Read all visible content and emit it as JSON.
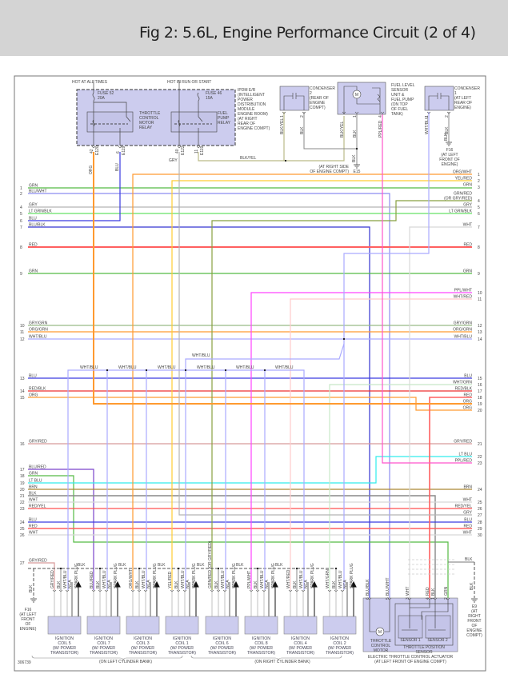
{
  "title": "Fig 2: 5.6L, Engine Performance Circuit (2 of 4)",
  "figure_id": "306739",
  "colors": {
    "GRN": "#55bb44",
    "BLU": "#3a3ae0",
    "BLU/WHT": "#8c8cf0",
    "BLU/BLK": "#3434d0",
    "GRY": "#b4b4b4",
    "LT GRN/BLK": "#66e066",
    "RED": "#ff6060",
    "ORG": "#ff9a30",
    "ORG/WHT": "#ff9a30",
    "YEL/RED": "#ffcc33",
    "GRN/RED": "#88a040",
    "WHT": "#d8d8d8",
    "PPL/WHT": "#ff44ff",
    "WHT/RED": "#ffcaca",
    "GRY/GRN": "#99bb88",
    "ORG/GRN": "#ff9a30",
    "WHT/BLU": "#aaaaff",
    "RED/BLK": "#ee3030",
    "WHT/GRN": "#c8e8c8",
    "GRY/RED": "#d89a9a",
    "LT BLU": "#30ecec",
    "PPL/RED": "#ff55cc",
    "BRN": "#aa8833",
    "BLK": "#888888",
    "RED/YEL": "#ff5050",
    "BLU/RED": "#7a44cc",
    "BLK/YEL": "#bbbb88",
    "module_fill": "#ccccee",
    "frame": "#666666"
  },
  "top": {
    "hot_all_times": "HOT AT ALL TIMES",
    "hot_run_start": "HOT IN RUN OR START",
    "fuse52": [
      "FUSE 52",
      "20A"
    ],
    "fuse46": [
      "FUSE 46",
      "15A"
    ],
    "tcm_relay": [
      "THROTTLE",
      "CONTROL",
      "MOTOR",
      "RELAY"
    ],
    "fp_relay": [
      "FUEL",
      "PUMP",
      "RELAY"
    ],
    "ipdm": [
      "IPDM E/R",
      "(INTELLIGENT",
      "POWER",
      "DISTRIBUTION",
      "MODULE",
      "ENGINE ROOM)",
      "(AT RIGHT",
      "REAR OF",
      "ENGINE COMPT)"
    ],
    "ipdm_pins": [
      {
        "pin": "42",
        "conn": "E120",
        "wire": "ORG"
      },
      {
        "pin": "6",
        "conn": "E119",
        "wire": "BLU"
      },
      {
        "pin": "40",
        "conn": "E122",
        "wire": "GRY"
      },
      {
        "pin": "11",
        "conn": "E119",
        "wire": "BLK/YEL"
      }
    ],
    "condenser2": [
      "CONDENSER",
      "2",
      "(REAR OF",
      "ENGINE",
      "COMPT)"
    ],
    "condenser2_pins": [
      {
        "pin": "1",
        "wire": "BLK/YEL"
      },
      {
        "pin": "2",
        "wire": "BLK"
      }
    ],
    "fuel_pump": [
      "FUEL LEVEL",
      "SENSOR",
      "UNIT &",
      "FUEL PUMP",
      "(ON TOP",
      "OF FUEL",
      "TANK)"
    ],
    "fuel_pump_pins": [
      {
        "pin": "",
        "wire": "BLK/YEL"
      },
      {
        "pin": "1",
        "wire": "BLK"
      },
      {
        "pin": "4",
        "wire": "PPL/RED"
      }
    ],
    "e15": {
      "wire": "BLK",
      "loc": [
        "(AT RIGHT SIDE",
        "OF ENGINE COMPT)"
      ],
      "id": "E15"
    },
    "condenser1": [
      "CONDENSER",
      "1",
      "(AT LEFT",
      "REAR OF",
      "ENGINE)"
    ],
    "condenser1_pins": [
      {
        "pin": "1",
        "wire": "WHT/BLU"
      },
      {
        "pin": "2",
        "wire": "BLK"
      }
    ],
    "f16_top": {
      "wires": [
        "BLK",
        "BLK"
      ],
      "lines": [
        "F16",
        "(AT LEFT",
        "FRONT OF",
        "ENGINE)"
      ]
    }
  },
  "left_rows": [
    {
      "num": "1",
      "label": "GRN"
    },
    {
      "num": "2",
      "label": "BLU/WHT"
    },
    {
      "num": "4",
      "label": "GRY"
    },
    {
      "num": "5",
      "label": "LT GRN/BLK"
    },
    {
      "num": "6",
      "label": "BLU"
    },
    {
      "num": "7",
      "label": "BLU/BLK"
    },
    {
      "num": "8",
      "label": "RED"
    },
    {
      "num": "9",
      "label": "GRN"
    },
    {
      "num": "10",
      "label": "GRY/GRN"
    },
    {
      "num": "11",
      "label": "ORG/GRN"
    },
    {
      "num": "12",
      "label": "WHT/BLU"
    },
    {
      "num": "13",
      "label": "BLU"
    },
    {
      "num": "14",
      "label": "RED/BLK"
    },
    {
      "num": "15",
      "label": "ORG"
    },
    {
      "num": "16",
      "label": "GRY/RED"
    },
    {
      "num": "17",
      "label": "BLU/RED"
    },
    {
      "num": "18",
      "label": "GRN"
    },
    {
      "num": "19",
      "label": "LT BLU"
    },
    {
      "num": "20",
      "label": "BRN"
    },
    {
      "num": "21",
      "label": "BLK"
    },
    {
      "num": "22",
      "label": "WHT"
    },
    {
      "num": "23",
      "label": "RED/YEL"
    },
    {
      "num": "24",
      "label": "BLU"
    },
    {
      "num": "25",
      "label": "RED"
    },
    {
      "num": "26",
      "label": "WHT"
    },
    {
      "num": "27",
      "label": "GRY/RED"
    }
  ],
  "right_rows": [
    {
      "num": "1",
      "label": "ORG/WHT"
    },
    {
      "num": "2",
      "label": "YEL/RED"
    },
    {
      "num": "3",
      "label": "GRN"
    },
    {
      "num": "4",
      "label": "GRN/RED",
      "sub": "(OR GRY/RED)"
    },
    {
      "num": "5",
      "label": "GRY"
    },
    {
      "num": "6",
      "label": "LT GRN/BLK"
    },
    {
      "num": "7",
      "label": "WHT"
    },
    {
      "num": "8",
      "label": "RED"
    },
    {
      "num": "9",
      "label": "GRN"
    },
    {
      "num": "10",
      "label": "PPL/WHT"
    },
    {
      "num": "11",
      "label": "WHT/RED"
    },
    {
      "num": "12",
      "label": "GRY/GRN"
    },
    {
      "num": "13",
      "label": "ORG/GRN"
    },
    {
      "num": "14",
      "label": "WHT/BLU"
    },
    {
      "num": "15",
      "label": "BLU"
    },
    {
      "num": "16",
      "label": "WHT/GRN"
    },
    {
      "num": "17",
      "label": "RED/BLK"
    },
    {
      "num": "18",
      "label": "RED"
    },
    {
      "num": "19",
      "label": "ORG"
    },
    {
      "num": "20",
      "label": "ORG"
    },
    {
      "num": "21",
      "label": "GRY/RED"
    },
    {
      "num": "22",
      "label": "LT BLU"
    },
    {
      "num": "23",
      "label": "PPL/RED"
    },
    {
      "num": "24",
      "label": "BRN"
    },
    {
      "num": "25",
      "label": "WHT"
    },
    {
      "num": "26",
      "label": "RED/YEL"
    },
    {
      "num": "27",
      "label": "GRY"
    },
    {
      "num": "28",
      "label": "BLU"
    },
    {
      "num": "29",
      "label": "RED"
    },
    {
      "num": "30",
      "label": "WHT"
    }
  ],
  "wht_blu_bus_label": "WHT/BLU",
  "ground_bus_label": "BLK",
  "coils": [
    {
      "name": [
        "IGNITION",
        "COIL 5",
        "(W/ POWER",
        "TRANSISTOR)"
      ],
      "pins": [
        "GRY/RED",
        "BLK",
        "WHT/BLU",
        "NCA",
        "SPARK PLUG"
      ]
    },
    {
      "name": [
        "IGNITION",
        "COIL 7",
        "(W/ POWER",
        "TRANSISTOR)"
      ],
      "pins": [
        "BLU/RED",
        "BLK",
        "WHT/BLU",
        "NCA",
        "SPARK PLUG"
      ]
    },
    {
      "name": [
        "IGNITION",
        "COIL 3",
        "(W/ POWER",
        "TRANSISTOR)"
      ],
      "pins": [
        "ORG/WHT",
        "BLK",
        "WHT/BLU",
        "NCA",
        "SPARK PLUG"
      ]
    },
    {
      "name": [
        "IGNITION",
        "COIL 1",
        "(W/ POWER",
        "TRANSISTOR)"
      ],
      "pins": [
        "YEL/RED",
        "BLK",
        "WHT/BLU",
        "NCA",
        "SPARK PLUG"
      ]
    },
    {
      "name": [
        "IGNITION",
        "COIL 6",
        "(W/ POWER",
        "TRANSISTOR)"
      ],
      "pins": [
        "GRN/RED (OR GRY/RED)",
        "BLK",
        "WHT/BLU",
        "NCA",
        "SPARK PLUG"
      ]
    },
    {
      "name": [
        "IGNITION",
        "COIL 8",
        "(W/ POWER",
        "TRANSISTOR)"
      ],
      "pins": [
        "PPL/WHT",
        "BLK",
        "WHT/BLU",
        "NCA",
        "SPARK PLUG"
      ]
    },
    {
      "name": [
        "IGNITION",
        "COIL 4",
        "(W/ POWER",
        "TRANSISTOR)"
      ],
      "pins": [
        "WHT/RED",
        "BLK",
        "WHT/BLU",
        "NCA",
        "SPARK PLUG"
      ]
    },
    {
      "name": [
        "IGNITION",
        "COIL 2",
        "(W/ POWER",
        "TRANSISTOR)"
      ],
      "pins": [
        "WHT/GRN",
        "BLK",
        "WHT/BLU",
        "NCA",
        "SPARK PLUG"
      ]
    }
  ],
  "banks": {
    "left": "(ON LEFT CYLINDER BANK)",
    "right": "(ON RIGHT CYLINDER BANK)"
  },
  "f16_bottom": {
    "wire": "BLK",
    "lines": [
      "F16",
      "(AT LEFT",
      "FRONT",
      "OF",
      "ENGINE)"
    ]
  },
  "actuator": {
    "pins": [
      {
        "pin": "6",
        "wire": "BLU/BLK"
      },
      {
        "pin": "5",
        "wire": "BLU/WHT"
      },
      {
        "pin": "3",
        "wire": "WHT"
      },
      {
        "pin": "4",
        "wire": "RED"
      },
      {
        "pin": "1",
        "wire": "BLK"
      },
      {
        "pin": "2",
        "wire": "GRN"
      }
    ],
    "motor_symbol": "M",
    "motor": [
      "THROTTLE",
      "CONTROL",
      "MOTOR"
    ],
    "sensor1": "SENSOR 1",
    "sensor2": "SENSOR 2",
    "tps": [
      "THROTTLE POSITION",
      "SENSOR"
    ],
    "caption": [
      "ELECTRIC THROTTLE CONTROL ACTUATOR",
      "(AT LEFT FRONT OF ENGINE COMPT)"
    ]
  },
  "e9": {
    "wire": "BLK",
    "wire2": "BLK",
    "lines": [
      "E9",
      "(AT",
      "RIGHT",
      "FRONT",
      "OF",
      "ENGINE",
      "COMPT)"
    ]
  }
}
